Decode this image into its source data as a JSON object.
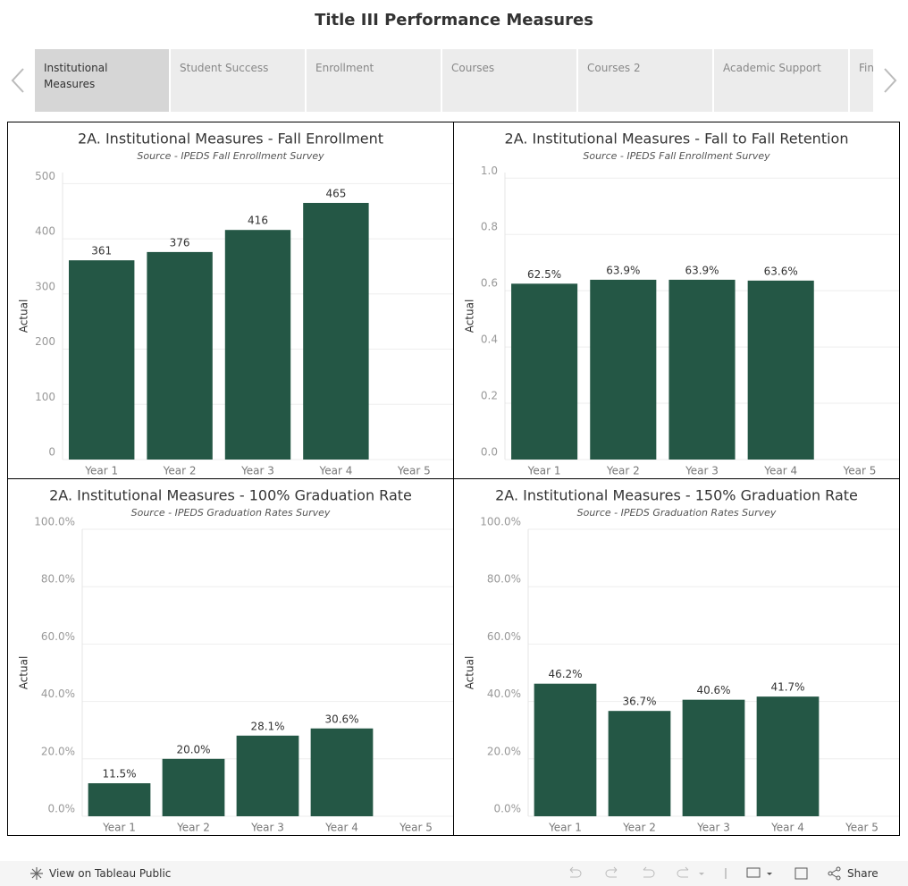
{
  "header": {
    "title": "Title III Performance Measures"
  },
  "tabs": [
    "Institutional Measures",
    "Student Success",
    "Enrollment",
    "Courses",
    "Courses 2",
    "Academic Support",
    "Fin"
  ],
  "chart_data": [
    {
      "type": "bar",
      "title": "2A. Institutional Measures - Fall Enrollment",
      "subtitle": "Source - IPEDS Fall Enrollment Survey",
      "y_label": "Actual",
      "categories": [
        "Year 1",
        "Year 2",
        "Year 3",
        "Year 4",
        "Year 5"
      ],
      "values": [
        361,
        376,
        416,
        465,
        null
      ],
      "color": "#245745",
      "ylim": [
        0,
        520
      ],
      "yticks": [
        0,
        100,
        200,
        300,
        400,
        500
      ],
      "grid": true
    },
    {
      "type": "bar",
      "title": "2A. Institutional Measures - Fall to Fall Retention",
      "subtitle": "Source - IPEDS Fall Enrollment Survey",
      "y_label": "Actual",
      "categories": [
        "Year 1",
        "Year 2",
        "Year 3",
        "Year 4",
        "Year 5"
      ],
      "values": [
        0.625,
        0.639,
        0.639,
        0.636,
        null
      ],
      "value_labels": [
        "62.5%",
        "63.9%",
        "63.9%",
        "63.6%",
        null
      ],
      "color": "#245745",
      "ylim": [
        0,
        1.02
      ],
      "yticks": [
        {
          "value": 0,
          "label": "0.0"
        },
        0.2,
        0.4,
        0.6,
        0.8,
        {
          "value": 1,
          "label": "1.0"
        }
      ],
      "grid": true
    },
    {
      "type": "bar",
      "title": "2A. Institutional Measures - 100% Graduation Rate",
      "subtitle": "Source - IPEDS Graduation Rates Survey",
      "y_label": "Actual",
      "categories": [
        "Year 1",
        "Year 2",
        "Year 3",
        "Year 4",
        "Year 5"
      ],
      "values": [
        11.5,
        20.0,
        28.1,
        30.6,
        null
      ],
      "value_labels": [
        "11.5%",
        "20.0%",
        "28.1%",
        "30.6%",
        null
      ],
      "color": "#245745",
      "ylim": [
        0,
        100
      ],
      "yticks": [
        {
          "value": 0,
          "label": "0.0%"
        },
        {
          "value": 20,
          "label": "20.0%"
        },
        {
          "value": 40,
          "label": "40.0%"
        },
        {
          "value": 60,
          "label": "60.0%"
        },
        {
          "value": 80,
          "label": "80.0%"
        },
        {
          "value": 100,
          "label": "100.0%"
        }
      ],
      "grid": true
    },
    {
      "type": "bar",
      "title": "2A. Institutional Measures - 150% Graduation Rate",
      "subtitle": "Source - IPEDS Graduation Rates Survey",
      "y_label": "Actual",
      "categories": [
        "Year 1",
        "Year 2",
        "Year 3",
        "Year 4",
        "Year 5"
      ],
      "values": [
        46.2,
        36.7,
        40.6,
        41.7,
        null
      ],
      "value_labels": [
        "46.2%",
        "36.7%",
        "40.6%",
        "41.7%",
        null
      ],
      "color": "#245745",
      "ylim": [
        0,
        100
      ],
      "yticks": [
        {
          "value": 0,
          "label": "0.0%"
        },
        {
          "value": 20,
          "label": "20.0%"
        },
        {
          "value": 40,
          "label": "40.0%"
        },
        {
          "value": 60,
          "label": "60.0%"
        },
        {
          "value": 80,
          "label": "80.0%"
        },
        {
          "value": 100,
          "label": "100.0%"
        }
      ],
      "grid": true
    }
  ],
  "footer": {
    "link": "View on Tableau Public",
    "share": "Share"
  }
}
